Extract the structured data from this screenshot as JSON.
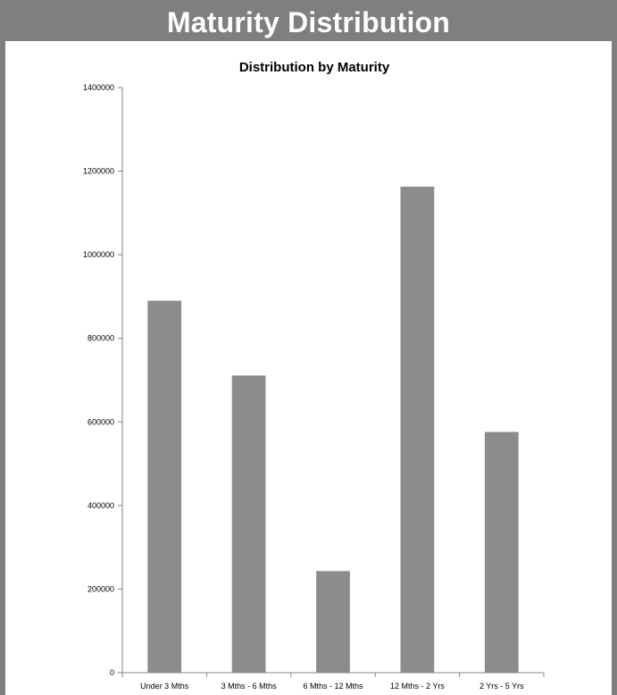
{
  "header": {
    "title": "Maturity Distribution"
  },
  "colors": {
    "header_bg": "#7f7f7f",
    "bar": "#8c8c8c",
    "axis": "#868686"
  },
  "chart_data": {
    "type": "bar",
    "title": "Distribution by Maturity",
    "xlabel": "",
    "ylabel": "",
    "categories": [
      "Under 3 Mths",
      "3 Mths - 6 Mths",
      "6 Mths - 12 Mths",
      "12 Mths - 2 Yrs",
      "2 Yrs - 5 Yrs"
    ],
    "values": [
      890000,
      711000,
      243000,
      1163000,
      576000
    ],
    "ylim": [
      0,
      1400000
    ],
    "yticks": [
      0,
      200000,
      400000,
      600000,
      800000,
      1000000,
      1200000,
      1400000
    ],
    "ytick_labels": [
      "0",
      "200000",
      "400000",
      "600000",
      "800000",
      "1000000",
      "1200000",
      "1400000"
    ],
    "grid": false,
    "legend": "none"
  }
}
